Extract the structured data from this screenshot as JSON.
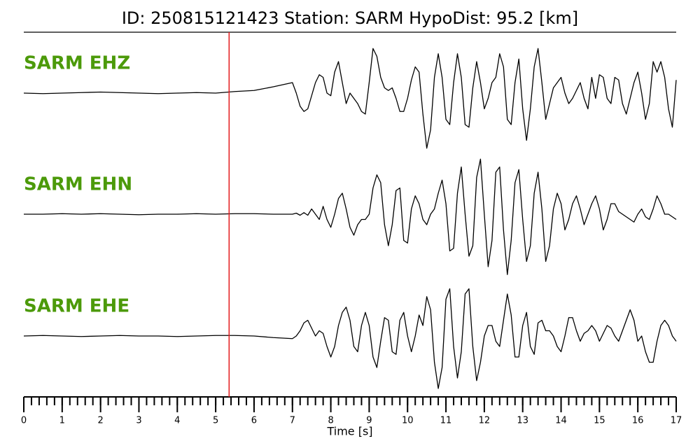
{
  "chart_data": {
    "type": "line",
    "title": "ID: 250815121423   Station: SARM   HypoDist:    95.2 [km]",
    "xlabel": "Time [s]",
    "xlim": [
      0,
      17
    ],
    "xticks": [
      0,
      1,
      2,
      3,
      4,
      5,
      6,
      7,
      8,
      9,
      10,
      11,
      12,
      13,
      14,
      15,
      16,
      17
    ],
    "minor_tick_step": 0.2,
    "ylim": [
      -1.2,
      1.2
    ],
    "label_color": "#4c9a0a",
    "pick_time": 5.35,
    "pick_color": "#e41a1c",
    "x": [
      0,
      0.5,
      1,
      1.5,
      2,
      2.5,
      3,
      3.5,
      4,
      4.5,
      5,
      5.5,
      6,
      6.5,
      7.0,
      7.1,
      7.2,
      7.3,
      7.4,
      7.5,
      7.6,
      7.7,
      7.8,
      7.9,
      8.0,
      8.1,
      8.2,
      8.3,
      8.4,
      8.5,
      8.6,
      8.7,
      8.8,
      8.9,
      9.0,
      9.1,
      9.2,
      9.3,
      9.4,
      9.5,
      9.6,
      9.7,
      9.8,
      9.9,
      10.0,
      10.1,
      10.2,
      10.3,
      10.4,
      10.5,
      10.6,
      10.7,
      10.8,
      10.9,
      11.0,
      11.1,
      11.2,
      11.3,
      11.4,
      11.5,
      11.6,
      11.7,
      11.8,
      11.9,
      12.0,
      12.1,
      12.2,
      12.3,
      12.4,
      12.5,
      12.6,
      12.7,
      12.8,
      12.9,
      13.0,
      13.1,
      13.2,
      13.3,
      13.4,
      13.5,
      13.6,
      13.7,
      13.8,
      13.9,
      14.0,
      14.1,
      14.2,
      14.3,
      14.4,
      14.5,
      14.6,
      14.7,
      14.8,
      14.9,
      15.0,
      15.1,
      15.2,
      15.3,
      15.4,
      15.5,
      15.6,
      15.7,
      15.8,
      15.9,
      16.0,
      16.1,
      16.2,
      16.3,
      16.4,
      16.5,
      16.6,
      16.7,
      16.8,
      16.9,
      17.0
    ],
    "series": [
      {
        "name": "SARM EHZ",
        "color": "#000000",
        "values": [
          0,
          -0.01,
          0,
          0.01,
          0.02,
          0.01,
          0,
          -0.01,
          0,
          0.01,
          0,
          0.03,
          0.05,
          0.12,
          0.2,
          0.0,
          -0.25,
          -0.35,
          -0.3,
          -0.05,
          0.2,
          0.35,
          0.3,
          0.0,
          -0.05,
          0.4,
          0.6,
          0.2,
          -0.2,
          0.0,
          -0.1,
          -0.2,
          -0.35,
          -0.4,
          0.2,
          0.85,
          0.7,
          0.3,
          0.1,
          0.05,
          0.1,
          -0.1,
          -0.35,
          -0.35,
          -0.1,
          0.25,
          0.5,
          0.4,
          -0.4,
          -1.05,
          -0.7,
          0.3,
          0.75,
          0.3,
          -0.5,
          -0.6,
          0.2,
          0.75,
          0.3,
          -0.6,
          -0.65,
          0.1,
          0.6,
          0.2,
          -0.3,
          -0.1,
          0.2,
          0.3,
          0.75,
          0.5,
          -0.5,
          -0.6,
          0.2,
          0.65,
          -0.3,
          -0.9,
          -0.3,
          0.5,
          0.85,
          0.2,
          -0.5,
          -0.2,
          0.1,
          0.2,
          0.3,
          0.0,
          -0.2,
          -0.1,
          0.05,
          0.2,
          -0.1,
          -0.3,
          0.3,
          -0.1,
          0.35,
          0.3,
          -0.1,
          -0.2,
          0.3,
          0.25,
          -0.2,
          -0.4,
          -0.1,
          0.2,
          0.4,
          0.0,
          -0.5,
          -0.2,
          0.6,
          0.4,
          0.6,
          0.3,
          -0.3,
          -0.65,
          0.25
        ]
      },
      {
        "name": "SARM EHN",
        "color": "#000000",
        "values": [
          0,
          0,
          0.01,
          0,
          0.01,
          0,
          -0.01,
          0,
          0,
          0.01,
          0,
          0.01,
          0.01,
          0.0,
          0.0,
          0.02,
          -0.02,
          0.03,
          -0.02,
          0.1,
          0.0,
          -0.1,
          0.15,
          -0.1,
          -0.25,
          0.0,
          0.3,
          0.4,
          0.1,
          -0.25,
          -0.4,
          -0.2,
          -0.1,
          -0.1,
          0.0,
          0.5,
          0.75,
          0.6,
          -0.2,
          -0.6,
          -0.2,
          0.45,
          0.5,
          -0.5,
          -0.55,
          0.1,
          0.35,
          0.2,
          -0.1,
          -0.2,
          0.0,
          0.1,
          0.4,
          0.65,
          0.2,
          -0.7,
          -0.65,
          0.4,
          0.9,
          0.0,
          -0.8,
          -0.6,
          0.7,
          1.05,
          0.0,
          -1.0,
          -0.5,
          0.8,
          0.9,
          -0.3,
          -1.15,
          -0.5,
          0.6,
          0.85,
          -0.1,
          -0.9,
          -0.6,
          0.4,
          0.8,
          0.1,
          -0.9,
          -0.6,
          0.1,
          0.4,
          0.2,
          -0.3,
          -0.1,
          0.2,
          0.35,
          0.1,
          -0.2,
          0.0,
          0.2,
          0.35,
          0.1,
          -0.3,
          -0.1,
          0.2,
          0.2,
          0.05,
          0.0,
          -0.05,
          -0.1,
          -0.15,
          0.0,
          0.1,
          -0.05,
          -0.1,
          0.1,
          0.35,
          0.2,
          0.0,
          0.0,
          -0.05,
          -0.1
        ]
      },
      {
        "name": "SARM EHE",
        "color": "#000000",
        "values": [
          0,
          0.01,
          0,
          -0.01,
          0,
          0.01,
          0,
          0,
          -0.01,
          0,
          0.01,
          0.01,
          0.0,
          -0.03,
          -0.05,
          0.0,
          0.1,
          0.25,
          0.3,
          0.15,
          0.0,
          0.1,
          0.05,
          -0.2,
          -0.4,
          -0.2,
          0.2,
          0.45,
          0.55,
          0.3,
          -0.2,
          -0.3,
          0.2,
          0.45,
          0.2,
          -0.4,
          -0.6,
          -0.1,
          0.35,
          0.3,
          -0.3,
          -0.35,
          0.3,
          0.45,
          0.0,
          -0.3,
          0.0,
          0.4,
          0.2,
          0.75,
          0.5,
          -0.5,
          -1.0,
          -0.6,
          0.7,
          0.9,
          -0.2,
          -0.8,
          -0.3,
          0.8,
          0.9,
          -0.2,
          -0.85,
          -0.5,
          0.0,
          0.2,
          0.2,
          -0.1,
          -0.2,
          0.3,
          0.8,
          0.4,
          -0.4,
          -0.4,
          0.2,
          0.45,
          -0.2,
          -0.35,
          0.25,
          0.3,
          0.1,
          0.1,
          0.0,
          -0.2,
          -0.3,
          0.0,
          0.35,
          0.35,
          0.1,
          -0.1,
          0.05,
          0.1,
          0.2,
          0.1,
          -0.1,
          0.05,
          0.2,
          0.15,
          0.0,
          -0.1,
          0.1,
          0.3,
          0.5,
          0.3,
          -0.1,
          0.0,
          -0.3,
          -0.5,
          -0.5,
          -0.1,
          0.2,
          0.3,
          0.2,
          0.0,
          -0.1
        ]
      }
    ]
  }
}
